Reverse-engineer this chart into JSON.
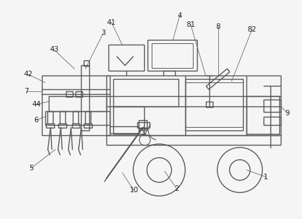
{
  "bg_color": "#f5f5f5",
  "line_color": "#555555",
  "line_width": 1.0,
  "fig_width": 4.4,
  "fig_height": 3.19,
  "dpi": 100
}
